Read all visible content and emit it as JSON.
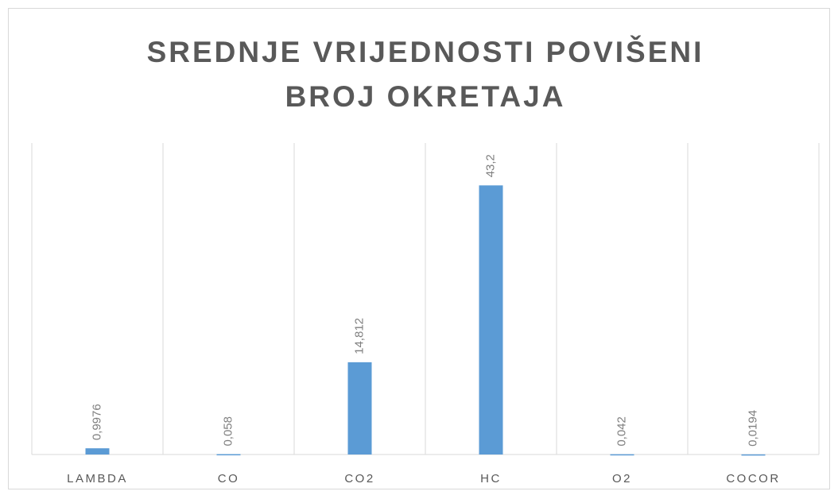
{
  "chart_data": {
    "type": "bar",
    "title": "SREDNJE VRIJEDNOSTI POVIŠENI BROJ OKRETAJA",
    "categories": [
      "LAMBDA",
      "CO",
      "CO2",
      "HC",
      "O2",
      "COCOR"
    ],
    "values": [
      0.9976,
      0.058,
      14.812,
      43.2,
      0.042,
      0.0194
    ],
    "value_labels": [
      "0,9976",
      "0,058",
      "14,812",
      "43,2",
      "0,042",
      "0,0194"
    ],
    "color": "#5b9bd5",
    "ylim": [
      0,
      50
    ]
  }
}
